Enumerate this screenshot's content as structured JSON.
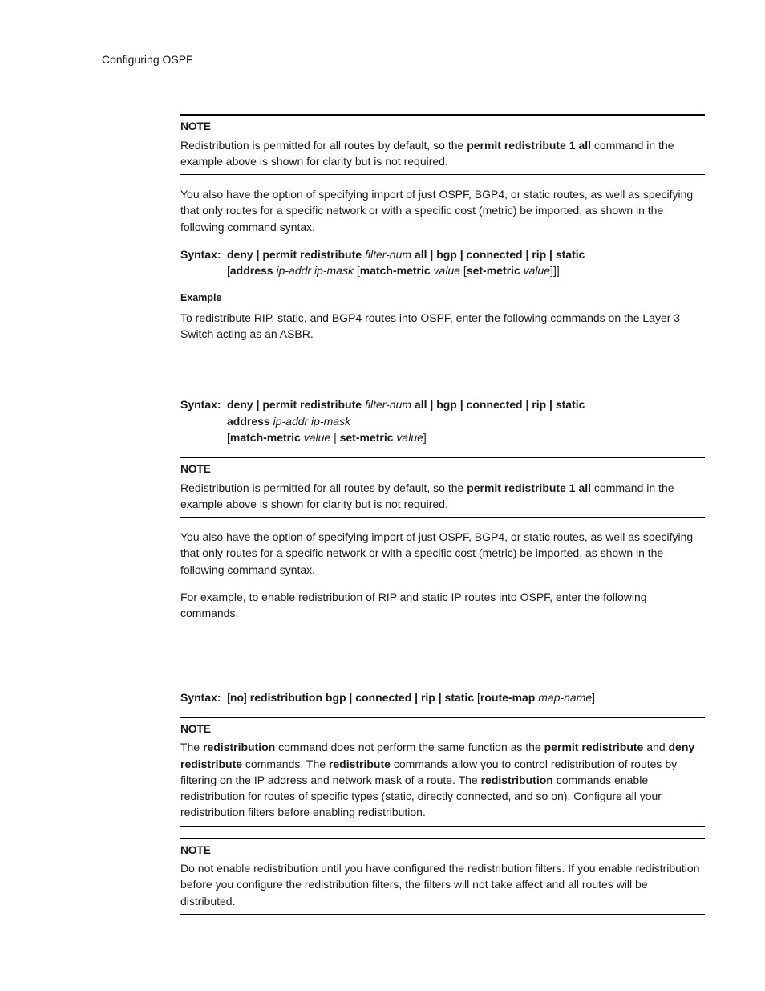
{
  "header": "Configuring OSPF",
  "note1_label": "NOTE",
  "note1_t1": "Redistribution is permitted for all routes by default, so the ",
  "note1_cmd": "permit redistribute 1 all",
  "note1_t2": " command in the example above is shown for clarity but is not required.",
  "para1": "You also have the option of specifying import of just OSPF, BGP4, or static routes, as well as specifying that only routes for a specific network or with a specific cost (metric) be imported, as shown in the following command syntax.",
  "syntax_label": "Syntax:",
  "s1_a": "deny | permit redistribute",
  "s1_b": " filter-num ",
  "s1_c": "all | bgp | connected | rip | static",
  "s1_d_open": "[",
  "s1_d": "address",
  "s1_e": " ip-addr ip-mask ",
  "s1_f_open": "[",
  "s1_f": "match-metric",
  "s1_g": " value ",
  "s1_h_open": "[",
  "s1_h": "set-metric",
  "s1_i": " value",
  "s1_j": "]]]",
  "example_hdr": "Example",
  "example_text": "To redistribute RIP, static, and BGP4 routes into OSPF, enter the following commands on the Layer 3 Switch acting as an ASBR.",
  "s2_a": "deny | permit redistribute",
  "s2_b": " filter-num ",
  "s2_c": "all | bgp | connected | rip | static",
  "s2_d": "address",
  "s2_e": " ip-addr ip-mask",
  "s2_f_open": "[",
  "s2_f": "match-metric",
  "s2_g": " value ",
  "s2_h_sep": "| ",
  "s2_h": "set-metric",
  "s2_i": " value",
  "s2_j": "]",
  "note2_label": "NOTE",
  "note2_t1": "Redistribution is permitted for all routes by default, so the ",
  "note2_cmd": "permit redistribute 1 all",
  "note2_t2": " command in the example above is shown for clarity but is not required.",
  "para2": "You also have the option of specifying import of just OSPF, BGP4, or static routes, as well as specifying that only routes for a specific network or with a specific cost (metric) be imported, as shown in the following command syntax.",
  "para3": "For example, to enable redistribution of RIP and static IP routes into OSPF, enter the following commands.",
  "s3_a_open": "[",
  "s3_a": "no",
  "s3_a_close": "] ",
  "s3_b": "redistribution bgp | connected | rip | static ",
  "s3_c_open": "[",
  "s3_c": "route-map",
  "s3_d": " map-name",
  "s3_e": "]",
  "note3_label": "NOTE",
  "note3_t1": "The ",
  "note3_b1": "redistribution",
  "note3_t2": " command does not perform the same function as the ",
  "note3_b2": "permit redistribute",
  "note3_t3": " and ",
  "note3_b3": "deny redistribute",
  "note3_t4": " commands.  The ",
  "note3_b4": "redistribute",
  "note3_t5": " commands allow you to control redistribution of routes by filtering on the IP address and network mask of a route.  The ",
  "note3_b5": "redistribution",
  "note3_t6": " commands enable redistribution for routes of specific types (static, directly connected, and so on).  Configure all your redistribution filters before enabling redistribution.",
  "note4_label": "NOTE",
  "note4_text": "Do not enable redistribution until you have configured the redistribution filters.  If you enable redistribution before you configure the redistribution filters, the filters will not take affect and all routes will be distributed."
}
